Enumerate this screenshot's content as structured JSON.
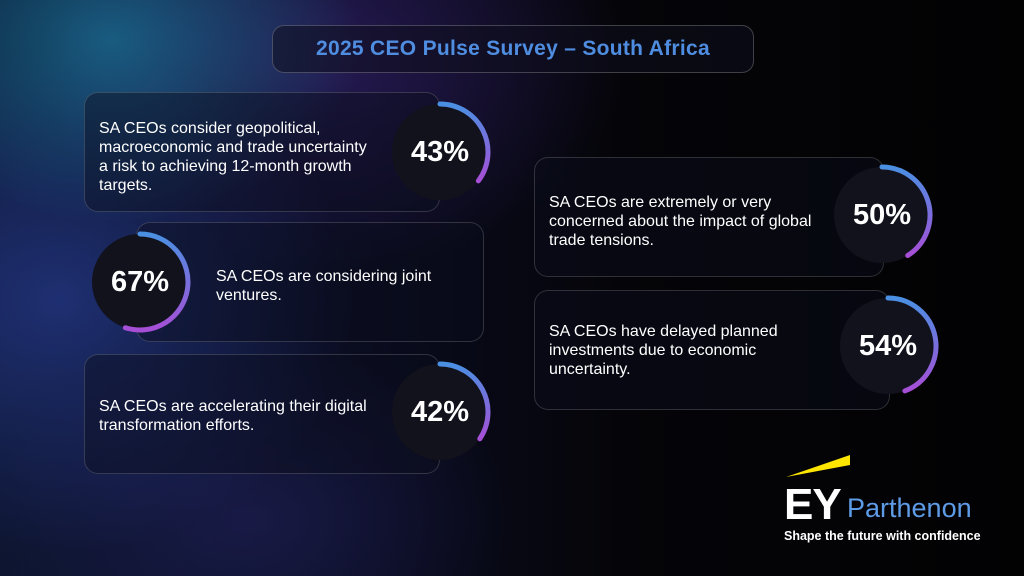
{
  "title": "2025 CEO Pulse Survey – South Africa",
  "stats": [
    {
      "percent": "43%",
      "value": 43,
      "text": "SA CEOs consider geopolitical, macroeconomic and trade uncertainty a risk to achieving 12-month growth targets."
    },
    {
      "percent": "67%",
      "value": 67,
      "text": "SA CEOs are considering joint ventures."
    },
    {
      "percent": "42%",
      "value": 42,
      "text": "SA CEOs are accelerating their digital transformation efforts."
    },
    {
      "percent": "50%",
      "value": 50,
      "text": "SA CEOs are extremely or very concerned about the impact of global trade tensions."
    },
    {
      "percent": "54%",
      "value": 54,
      "text": "SA CEOs have delayed planned investments due to economic uncertainty."
    }
  ],
  "brand": {
    "logo_letters": "EY",
    "name": "Parthenon",
    "tagline": "Shape the future with confidence",
    "beam_color": "#ffe600"
  },
  "colors": {
    "title": "#4f8de0",
    "ring_start": "#4a90e2",
    "ring_end": "#a64fd6"
  }
}
